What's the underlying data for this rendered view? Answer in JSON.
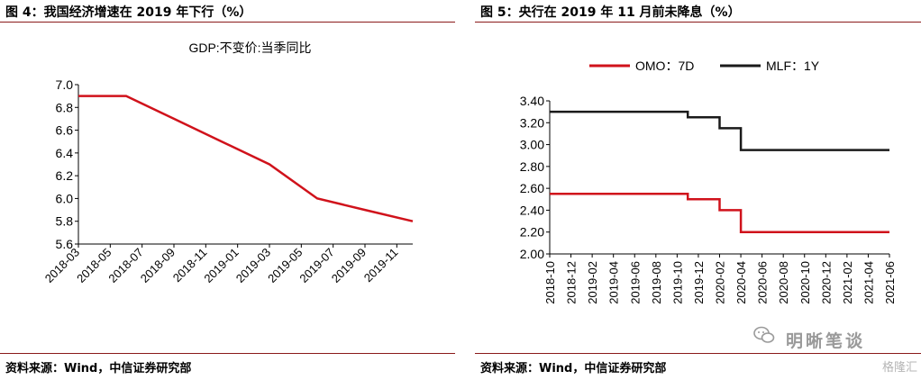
{
  "left": {
    "title": "图 4：我国经济增速在 2019 年下行（%）",
    "source": "资料来源：Wind，中信证券研究部",
    "chart_data": {
      "type": "line",
      "title": "GDP:不变价:当季同比",
      "x": [
        "2018-03",
        "2018-06",
        "2018-09",
        "2018-12",
        "2019-03",
        "2019-06",
        "2019-09",
        "2019-12"
      ],
      "series": [
        {
          "name": "GDP:不变价:当季同比",
          "color": "#d0121b",
          "values": [
            6.9,
            6.9,
            6.7,
            6.5,
            6.3,
            6.0,
            5.9,
            5.8
          ]
        }
      ],
      "xticks": [
        "2018-03",
        "2018-05",
        "2018-07",
        "2018-09",
        "2018-11",
        "2019-01",
        "2019-03",
        "2019-05",
        "2019-07",
        "2019-09",
        "2019-11"
      ],
      "yticks": [
        "5.6",
        "5.8",
        "6.0",
        "6.2",
        "6.4",
        "6.6",
        "6.8",
        "7.0"
      ],
      "ylim": [
        5.6,
        7.0
      ],
      "grid": false
    }
  },
  "right": {
    "title": "图 5：央行在 2019 年 11 月前未降息（%）",
    "source": "资料来源：Wind，中信证券研究部",
    "chart_data": {
      "type": "line",
      "step": true,
      "legend_position": "top",
      "series": [
        {
          "name": "OMO：7D",
          "color": "#d0121b",
          "points": [
            [
              "2018-10",
              2.55
            ],
            [
              "2019-11",
              2.55
            ],
            [
              "2019-11",
              2.5
            ],
            [
              "2020-02",
              2.5
            ],
            [
              "2020-02",
              2.4
            ],
            [
              "2020-04",
              2.4
            ],
            [
              "2020-04",
              2.2
            ],
            [
              "2021-06",
              2.2
            ]
          ]
        },
        {
          "name": "MLF：1Y",
          "color": "#1a1a1a",
          "points": [
            [
              "2018-10",
              3.3
            ],
            [
              "2019-11",
              3.3
            ],
            [
              "2019-11",
              3.25
            ],
            [
              "2020-02",
              3.25
            ],
            [
              "2020-02",
              3.15
            ],
            [
              "2020-04",
              3.15
            ],
            [
              "2020-04",
              2.95
            ],
            [
              "2021-06",
              2.95
            ]
          ]
        }
      ],
      "xticks": [
        "2018-10",
        "2018-12",
        "2019-02",
        "2019-04",
        "2019-06",
        "2019-08",
        "2019-10",
        "2019-12",
        "2020-02",
        "2020-04",
        "2020-06",
        "2020-08",
        "2020-10",
        "2020-12",
        "2021-02",
        "2021-04",
        "2021-06"
      ],
      "yticks": [
        "2.00",
        "2.20",
        "2.40",
        "2.60",
        "2.80",
        "3.00",
        "3.20",
        "3.40"
      ],
      "ylim": [
        2.0,
        3.4
      ],
      "grid": false
    }
  },
  "watermark": {
    "text": "明晰笔谈",
    "corner": "格隆汇"
  }
}
